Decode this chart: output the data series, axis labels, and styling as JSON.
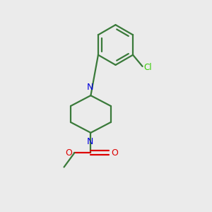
{
  "background_color": "#ebebeb",
  "line_color": "#3a7a3a",
  "nitrogen_color": "#0000dd",
  "oxygen_color": "#dd0000",
  "chlorine_color": "#33cc00",
  "bond_lw": 1.6,
  "figsize": [
    3.0,
    3.0
  ],
  "dpi": 100,
  "xlim": [
    0,
    10
  ],
  "ylim": [
    0,
    11
  ]
}
